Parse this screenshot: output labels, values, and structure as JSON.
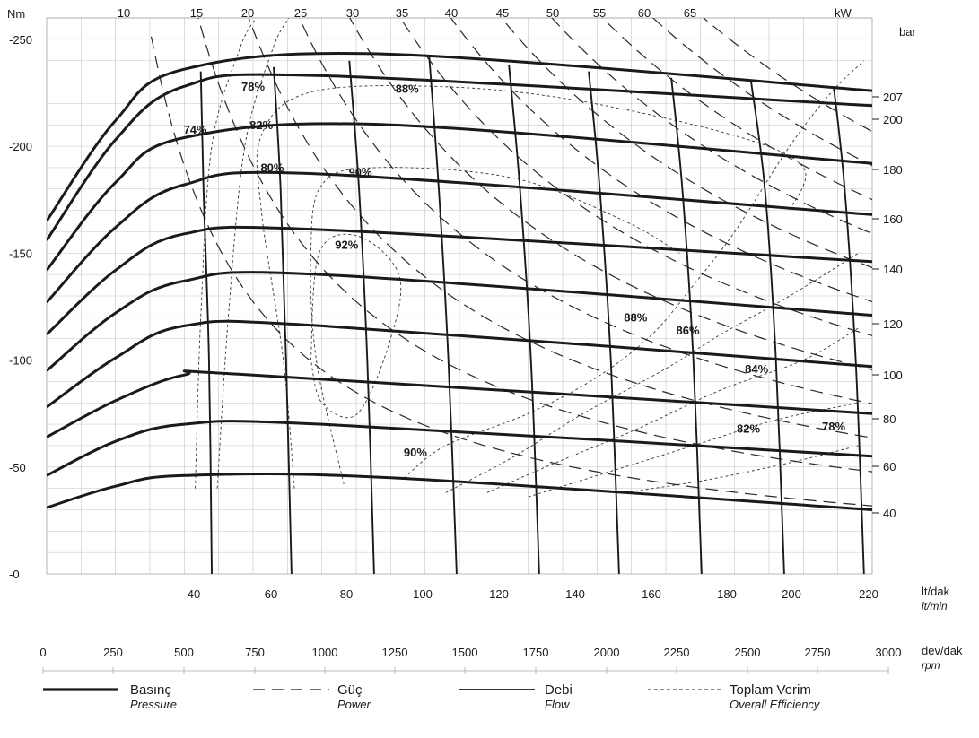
{
  "chart_data": {
    "type": "line",
    "axes": {
      "left": {
        "label": "Nm",
        "ticks": [
          "250",
          "200",
          "150",
          "100",
          "50",
          "0"
        ],
        "range": [
          0,
          260
        ]
      },
      "right": {
        "label": "bar",
        "ticks": [
          "207",
          "200",
          "180",
          "160",
          "140",
          "120",
          "100",
          "80",
          "60",
          "40"
        ]
      },
      "top": {
        "label": "kW",
        "ticks": [
          "10",
          "15",
          "20",
          "25",
          "30",
          "35",
          "40",
          "45",
          "50",
          "55",
          "60",
          "65"
        ]
      },
      "flow": {
        "label": "lt/dak",
        "sublabel": "lt/min",
        "ticks": [
          "40",
          "60",
          "80",
          "100",
          "120",
          "140",
          "160",
          "180",
          "200",
          "220"
        ]
      },
      "rpm": {
        "label": "dev/dak",
        "sublabel": "rpm",
        "ticks": [
          "0",
          "250",
          "500",
          "750",
          "1000",
          "1250",
          "1500",
          "1750",
          "2000",
          "2250",
          "2500",
          "2750",
          "3000"
        ],
        "range": [
          0,
          3000
        ]
      }
    },
    "pressure_series": [
      {
        "bar": 207,
        "points": [
          [
            0,
            165
          ],
          [
            250,
            212
          ],
          [
            500,
            236
          ],
          [
            1250,
            243
          ],
          [
            3000,
            226
          ]
        ]
      },
      {
        "bar": 200,
        "points": [
          [
            0,
            156
          ],
          [
            250,
            203
          ],
          [
            500,
            228
          ],
          [
            1000,
            233
          ],
          [
            3000,
            219
          ]
        ]
      },
      {
        "bar": 180,
        "points": [
          [
            0,
            142
          ],
          [
            250,
            183
          ],
          [
            500,
            204
          ],
          [
            1250,
            210
          ],
          [
            3000,
            192
          ]
        ]
      },
      {
        "bar": 160,
        "points": [
          [
            0,
            127
          ],
          [
            250,
            162
          ],
          [
            500,
            182
          ],
          [
            1000,
            187
          ],
          [
            3000,
            168
          ]
        ]
      },
      {
        "bar": 140,
        "points": [
          [
            0,
            112
          ],
          [
            250,
            142
          ],
          [
            500,
            159
          ],
          [
            1000,
            161
          ],
          [
            3000,
            146
          ]
        ]
      },
      {
        "bar": 120,
        "points": [
          [
            0,
            95
          ],
          [
            250,
            122
          ],
          [
            500,
            137
          ],
          [
            1000,
            140
          ],
          [
            3000,
            121
          ]
        ]
      },
      {
        "bar": 100,
        "points": [
          [
            0,
            78
          ],
          [
            250,
            101
          ],
          [
            500,
            116
          ],
          [
            1000,
            116
          ],
          [
            3000,
            97
          ]
        ]
      },
      {
        "bar": 80,
        "points": [
          [
            0,
            64
          ],
          [
            250,
            81
          ],
          [
            500,
            93
          ],
          [
            750,
            93
          ],
          [
            3000,
            75
          ]
        ]
      },
      {
        "bar": 60,
        "points": [
          [
            0,
            46
          ],
          [
            250,
            62
          ],
          [
            500,
            70
          ],
          [
            1000,
            70
          ],
          [
            3000,
            55
          ]
        ]
      },
      {
        "bar": 40,
        "points": [
          [
            0,
            31
          ],
          [
            250,
            41
          ],
          [
            500,
            46
          ],
          [
            1250,
            45
          ],
          [
            3000,
            30
          ]
        ]
      }
    ],
    "flow_series": [
      {
        "lt_min": 40,
        "points": [
          [
            600,
            0
          ],
          [
            590,
            100
          ],
          [
            570,
            180
          ],
          [
            560,
            235
          ]
        ]
      },
      {
        "lt_min": 60,
        "points": [
          [
            890,
            0
          ],
          [
            870,
            100
          ],
          [
            850,
            180
          ],
          [
            825,
            237
          ]
        ]
      },
      {
        "lt_min": 80,
        "points": [
          [
            1190,
            0
          ],
          [
            1165,
            100
          ],
          [
            1135,
            180
          ],
          [
            1100,
            240
          ]
        ]
      },
      {
        "lt_min": 100,
        "points": [
          [
            1490,
            0
          ],
          [
            1460,
            100
          ],
          [
            1425,
            180
          ],
          [
            1390,
            242
          ]
        ]
      },
      {
        "lt_min": 120,
        "points": [
          [
            1790,
            0
          ],
          [
            1760,
            100
          ],
          [
            1720,
            180
          ],
          [
            1680,
            238
          ]
        ]
      },
      {
        "lt_min": 140,
        "points": [
          [
            2080,
            0
          ],
          [
            2050,
            100
          ],
          [
            2010,
            180
          ],
          [
            1970,
            235
          ]
        ]
      },
      {
        "lt_min": 160,
        "points": [
          [
            2380,
            0
          ],
          [
            2350,
            100
          ],
          [
            2310,
            180
          ],
          [
            2270,
            232
          ]
        ]
      },
      {
        "lt_min": 180,
        "points": [
          [
            2680,
            0
          ],
          [
            2650,
            100
          ],
          [
            2610,
            180
          ],
          [
            2560,
            230
          ]
        ]
      },
      {
        "lt_min": 200,
        "points": [
          [
            2970,
            0
          ],
          [
            2940,
            100
          ],
          [
            2900,
            180
          ],
          [
            2860,
            228
          ]
        ]
      }
    ],
    "power_kw": [
      10,
      15,
      20,
      25,
      30,
      35,
      40,
      45,
      50,
      55,
      60,
      65
    ],
    "efficiency_labels": [
      {
        "text": "78%",
        "rpm": 750,
        "nm": 226
      },
      {
        "text": "74%",
        "rpm": 540,
        "nm": 206
      },
      {
        "text": "82%",
        "rpm": 780,
        "nm": 208
      },
      {
        "text": "80%",
        "rpm": 820,
        "nm": 188
      },
      {
        "text": "88%",
        "rpm": 1310,
        "nm": 225
      },
      {
        "text": "90%",
        "rpm": 1140,
        "nm": 186
      },
      {
        "text": "92%",
        "rpm": 1090,
        "nm": 152
      },
      {
        "text": "88%",
        "rpm": 2140,
        "nm": 118
      },
      {
        "text": "86%",
        "rpm": 2330,
        "nm": 112
      },
      {
        "text": "84%",
        "rpm": 2580,
        "nm": 94
      },
      {
        "text": "82%",
        "rpm": 2550,
        "nm": 66
      },
      {
        "text": "78%",
        "rpm": 2860,
        "nm": 67
      },
      {
        "text": "90%",
        "rpm": 1340,
        "nm": 55
      }
    ]
  },
  "legend": [
    {
      "key": "pressure",
      "label": "Basınç",
      "sublabel": "Pressure"
    },
    {
      "key": "power",
      "label": "Güç",
      "sublabel": "Power"
    },
    {
      "key": "flow",
      "label": "Debi",
      "sublabel": "Flow"
    },
    {
      "key": "efficiency",
      "label": "Toplam Verim",
      "sublabel": "Overall Efficiency"
    }
  ]
}
